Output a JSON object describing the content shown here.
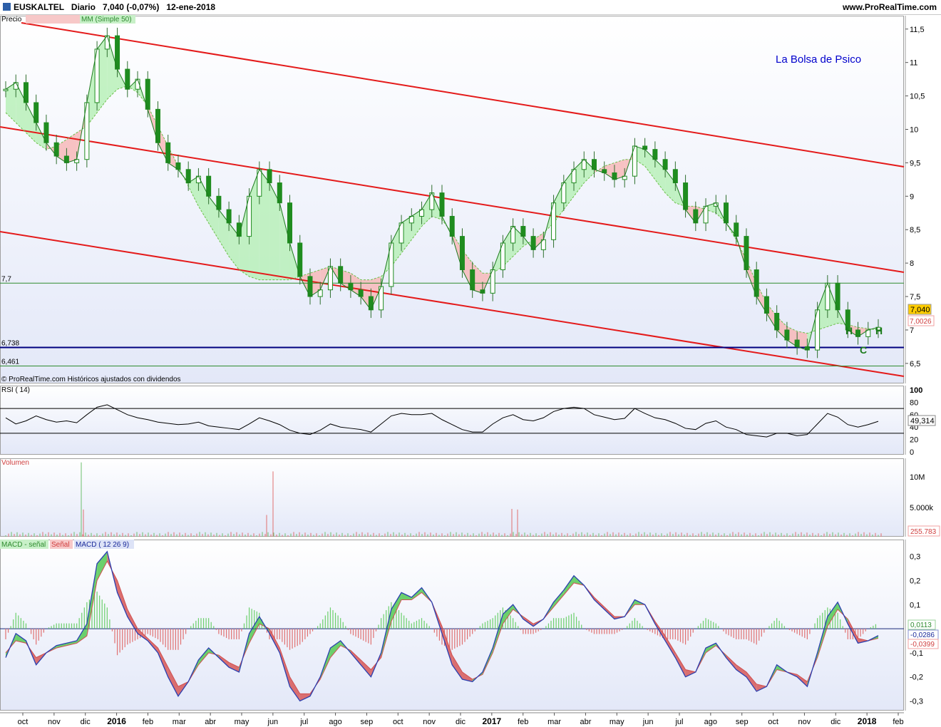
{
  "header": {
    "symbol": "EUSKALTEL",
    "period": "Diario",
    "last": "7,040 (-0,07%)",
    "date": "12-ene-2018",
    "site": "www.ProRealTime.com"
  },
  "chart_data": [
    {
      "type": "line",
      "panel": "price",
      "legend": [
        "Precio",
        "MM (Simple 50)"
      ],
      "annotation": "La Bolsa de Psico",
      "footer": "© ProRealTime.com  Históricos ajustados con dividendos",
      "pattern_labels": [
        "H",
        "C",
        "H"
      ],
      "yticks": [
        "11,5",
        "11",
        "10,5",
        "10",
        "9,5",
        "9",
        "8,5",
        "8",
        "7,5",
        "7",
        "6,5"
      ],
      "ylim": [
        6.2,
        11.7
      ],
      "hlines": [
        {
          "label": "7,7",
          "value": 7.7,
          "color": "#2e8b2e"
        },
        {
          "label": "6,738",
          "value": 6.738,
          "color": "#000080"
        },
        {
          "label": "6,461",
          "value": 6.461,
          "color": "#2e8b2e"
        }
      ],
      "badges": {
        "last_price": "7,040",
        "ma_value": "7,0026"
      },
      "price_series": [
        10.6,
        10.7,
        10.4,
        10.1,
        9.8,
        9.6,
        9.5,
        9.55,
        10.4,
        11.2,
        11.4,
        10.9,
        10.6,
        10.75,
        10.3,
        9.8,
        9.5,
        9.4,
        9.2,
        9.3,
        9.0,
        8.8,
        8.6,
        8.4,
        9.0,
        9.4,
        9.2,
        8.9,
        8.3,
        7.8,
        7.5,
        7.6,
        7.95,
        7.7,
        7.6,
        7.5,
        7.3,
        7.65,
        8.3,
        8.6,
        8.7,
        8.8,
        9.05,
        8.7,
        8.4,
        7.9,
        7.6,
        7.55,
        7.9,
        8.3,
        8.55,
        8.4,
        8.2,
        8.35,
        8.9,
        9.2,
        9.4,
        9.55,
        9.4,
        9.35,
        9.25,
        9.3,
        9.75,
        9.7,
        9.55,
        9.4,
        9.2,
        8.8,
        8.6,
        8.85,
        8.9,
        8.6,
        8.4,
        7.9,
        7.5,
        7.25,
        7.0,
        6.85,
        6.75,
        6.7,
        7.3,
        7.7,
        7.3,
        7.0,
        6.9,
        7.0,
        7.04
      ],
      "ma_series": [
        10.25,
        10.1,
        9.95,
        9.8,
        9.7,
        9.75,
        9.85,
        9.95,
        10.05,
        10.25,
        10.45,
        10.6,
        10.65,
        10.55,
        10.35,
        10.05,
        9.75,
        9.45,
        9.15,
        8.85,
        8.6,
        8.35,
        8.1,
        7.9,
        7.8,
        7.75,
        7.75,
        7.75,
        7.75,
        7.8,
        7.85,
        7.9,
        7.95,
        7.9,
        7.85,
        7.75,
        7.75,
        7.8,
        7.95,
        8.15,
        8.35,
        8.55,
        8.7,
        8.65,
        8.45,
        8.2,
        8.0,
        7.85,
        7.85,
        7.95,
        8.1,
        8.25,
        8.35,
        8.45,
        8.6,
        8.8,
        9.0,
        9.2,
        9.35,
        9.45,
        9.5,
        9.55,
        9.55,
        9.45,
        9.25,
        9.05,
        8.9,
        8.85,
        8.85,
        8.8,
        8.75,
        8.6,
        8.35,
        8.05,
        7.7,
        7.4,
        7.2,
        7.05,
        6.98,
        6.95,
        7.0,
        7.05,
        7.1,
        7.08,
        7.04,
        7.02,
        7.0
      ]
    },
    {
      "type": "line",
      "panel": "rsi",
      "title": "RSI ( 14)",
      "yticks": [
        "100",
        "80",
        "60",
        "40",
        "20",
        "0"
      ],
      "ylim": [
        0,
        100
      ],
      "levels": [
        70,
        30
      ],
      "last_value": "49,314",
      "values": [
        55,
        45,
        50,
        58,
        52,
        48,
        50,
        47,
        60,
        72,
        76,
        68,
        60,
        55,
        52,
        48,
        46,
        44,
        45,
        48,
        42,
        40,
        38,
        36,
        45,
        55,
        50,
        44,
        35,
        30,
        28,
        35,
        45,
        40,
        38,
        36,
        32,
        45,
        58,
        62,
        60,
        60,
        62,
        52,
        44,
        36,
        32,
        32,
        45,
        55,
        60,
        52,
        50,
        55,
        65,
        70,
        72,
        70,
        60,
        56,
        52,
        54,
        70,
        62,
        55,
        52,
        46,
        38,
        36,
        46,
        50,
        40,
        36,
        28,
        26,
        24,
        30,
        30,
        26,
        28,
        45,
        62,
        56,
        44,
        40,
        44,
        49.314
      ]
    },
    {
      "type": "bar",
      "panel": "volume",
      "title": "Volumen",
      "yticks": [
        "10M",
        "5.000k"
      ],
      "ylim": [
        0,
        12500000
      ],
      "last_value": "255.783",
      "spikes": [
        {
          "x_day": 120,
          "value": 12300000
        },
        {
          "x_day": 123,
          "value": 4500000
        },
        {
          "x_day": 380,
          "value": 3600000
        },
        {
          "x_day": 389,
          "value": 10800000
        },
        {
          "x_day": 724,
          "value": 4600000
        },
        {
          "x_day": 732,
          "value": 4500000
        }
      ],
      "base_level": 600000
    },
    {
      "type": "line",
      "panel": "macd",
      "legend": [
        "MACD - señal",
        "Señal",
        "MACD ( 12 26 9)"
      ],
      "yticks": [
        "0,3",
        "0,2",
        "0,1",
        "0",
        "-0,1",
        "-0,2",
        "-0,3"
      ],
      "ylim": [
        -0.34,
        0.37
      ],
      "last_values": {
        "histogram": "0,0113",
        "macd": "-0,0286",
        "signal": "-0,0399"
      },
      "macd": [
        -0.12,
        -0.02,
        -0.05,
        -0.15,
        -0.1,
        -0.07,
        -0.06,
        -0.05,
        0.02,
        0.27,
        0.32,
        0.15,
        0.05,
        -0.02,
        -0.05,
        -0.1,
        -0.2,
        -0.28,
        -0.22,
        -0.13,
        -0.08,
        -0.12,
        -0.16,
        -0.18,
        -0.02,
        0.05,
        -0.02,
        -0.1,
        -0.24,
        -0.3,
        -0.28,
        -0.2,
        -0.08,
        -0.05,
        -0.1,
        -0.15,
        -0.2,
        -0.1,
        0.08,
        0.15,
        0.13,
        0.17,
        0.11,
        -0.02,
        -0.15,
        -0.21,
        -0.22,
        -0.18,
        -0.08,
        0.06,
        0.1,
        0.04,
        0.01,
        0.04,
        0.11,
        0.16,
        0.22,
        0.18,
        0.12,
        0.08,
        0.04,
        0.05,
        0.12,
        0.1,
        0.02,
        -0.05,
        -0.12,
        -0.2,
        -0.18,
        -0.08,
        -0.06,
        -0.12,
        -0.17,
        -0.2,
        -0.26,
        -0.24,
        -0.15,
        -0.18,
        -0.2,
        -0.24,
        -0.1,
        0.05,
        0.11,
        0.02,
        -0.06,
        -0.05,
        -0.0286
      ],
      "signal": [
        -0.1,
        -0.05,
        -0.06,
        -0.12,
        -0.1,
        -0.08,
        -0.07,
        -0.06,
        -0.03,
        0.2,
        0.28,
        0.2,
        0.08,
        0.0,
        -0.04,
        -0.08,
        -0.16,
        -0.24,
        -0.22,
        -0.15,
        -0.1,
        -0.11,
        -0.14,
        -0.16,
        -0.06,
        0.02,
        0.0,
        -0.08,
        -0.2,
        -0.27,
        -0.27,
        -0.21,
        -0.12,
        -0.07,
        -0.09,
        -0.13,
        -0.17,
        -0.12,
        0.03,
        0.12,
        0.12,
        0.15,
        0.11,
        0.01,
        -0.11,
        -0.18,
        -0.21,
        -0.19,
        -0.1,
        0.02,
        0.08,
        0.05,
        0.02,
        0.04,
        0.09,
        0.14,
        0.19,
        0.18,
        0.13,
        0.09,
        0.05,
        0.05,
        0.1,
        0.1,
        0.03,
        -0.03,
        -0.1,
        -0.17,
        -0.18,
        -0.1,
        -0.07,
        -0.11,
        -0.15,
        -0.18,
        -0.23,
        -0.24,
        -0.17,
        -0.18,
        -0.19,
        -0.22,
        -0.12,
        0.01,
        0.08,
        0.04,
        -0.04,
        -0.05,
        -0.0399
      ]
    }
  ],
  "time_axis": {
    "labels": [
      "oct",
      "nov",
      "dic",
      "2016",
      "feb",
      "mar",
      "abr",
      "may",
      "jun",
      "jul",
      "ago",
      "sep",
      "oct",
      "nov",
      "dic",
      "2017",
      "feb",
      "mar",
      "abr",
      "may",
      "jun",
      "jul",
      "ago",
      "sep",
      "oct",
      "nov",
      "dic",
      "2018",
      "feb"
    ],
    "bold": [
      "2016",
      "2017",
      "2018"
    ]
  },
  "colors": {
    "price_up": "#1f8c1f",
    "price_down": "#1f8c1f",
    "ma_line": "#6cbf4a",
    "fill_above": "#b8f0b8",
    "fill_below": "#f7b8b8",
    "channel": "#e41a1a",
    "support": "#000080",
    "accent_text": "#0000cc",
    "pattern_text": "#1a7a1a",
    "panel_bg_top": "#ffffff",
    "panel_bg_bottom": "#dde3f7"
  }
}
